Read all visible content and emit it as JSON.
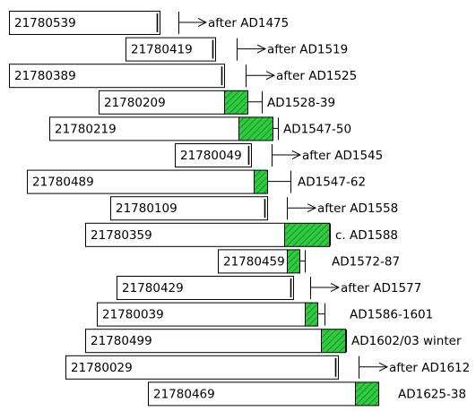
{
  "chart_data": {
    "type": "bar",
    "rows": [
      {
        "sample": "21780539",
        "date": "after AD1475",
        "sapwood": false,
        "after": true
      },
      {
        "sample": "21780419",
        "date": "after AD1519",
        "sapwood": false,
        "after": true
      },
      {
        "sample": "21780389",
        "date": "after AD1525",
        "sapwood": false,
        "after": true
      },
      {
        "sample": "21780209",
        "date": "AD1528-39",
        "sapwood": true,
        "after": false
      },
      {
        "sample": "21780219",
        "date": "AD1547-50",
        "sapwood": true,
        "after": false
      },
      {
        "sample": "21780049",
        "date": "after AD1545",
        "sapwood": false,
        "after": true
      },
      {
        "sample": "21780489",
        "date": "AD1547-62",
        "sapwood": true,
        "after": false
      },
      {
        "sample": "21780109",
        "date": "after AD1558",
        "sapwood": false,
        "after": true
      },
      {
        "sample": "21780359",
        "date": "c. AD1588",
        "sapwood": true,
        "after": false
      },
      {
        "sample": "21780459",
        "date": "AD1572-87",
        "sapwood": true,
        "after": false
      },
      {
        "sample": "21780429",
        "date": "after AD1577",
        "sapwood": false,
        "after": true
      },
      {
        "sample": "21780039",
        "date": "AD1586-1601",
        "sapwood": true,
        "after": false
      },
      {
        "sample": "21780499",
        "date": "AD1602/03 winter",
        "sapwood": true,
        "after": false
      },
      {
        "sample": "21780029",
        "date": "after AD1612",
        "sapwood": false,
        "after": true
      },
      {
        "sample": "21780469",
        "date": "AD1625-38",
        "sapwood": true,
        "after": false
      }
    ]
  },
  "colors": {
    "sapwood_fill": "#2ecc40",
    "sapwood_hatch": "#1f7a1f",
    "bar_outline": "#000000"
  }
}
